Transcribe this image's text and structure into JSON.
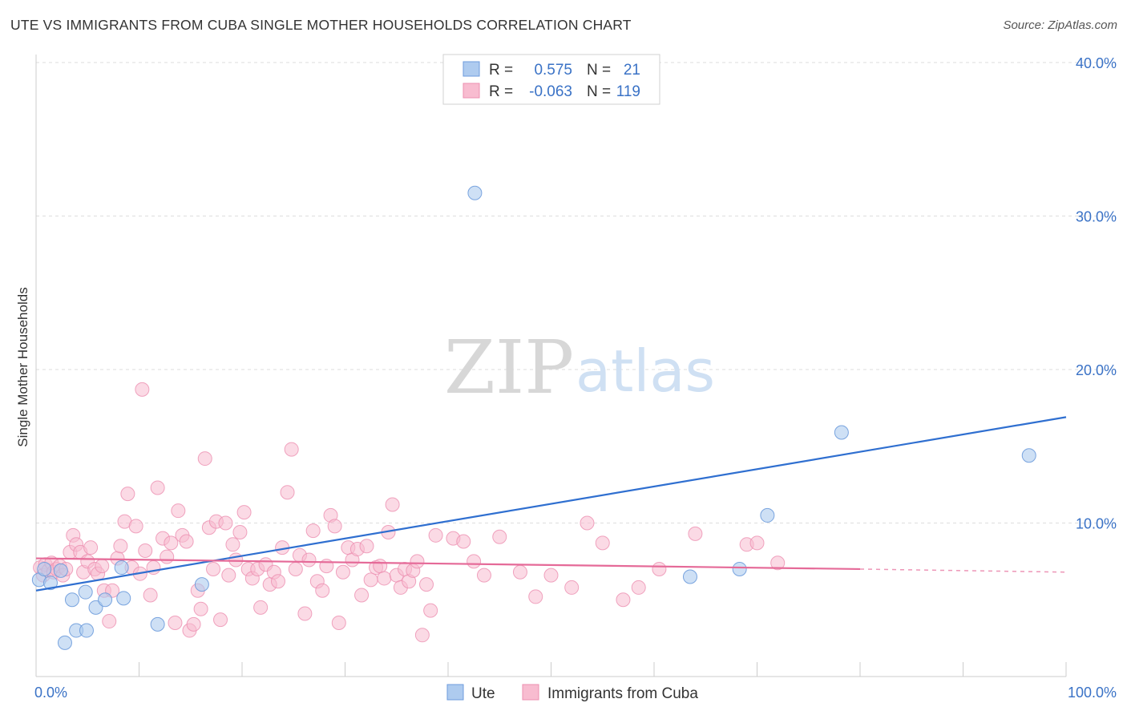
{
  "title": "UTE VS IMMIGRANTS FROM CUBA SINGLE MOTHER HOUSEHOLDS CORRELATION CHART",
  "source": "Source: ZipAtlas.com",
  "watermark": {
    "zip": "ZIP",
    "atlas": "atlas"
  },
  "colors": {
    "ute_fill": "#aecbef",
    "ute_stroke": "#6d9bdc",
    "ute_line": "#2f6fd0",
    "cuba_fill": "#f8bcd0",
    "cuba_stroke": "#ec8fb0",
    "cuba_line": "#e56a98",
    "tick_color": "#3a72c6",
    "grid": "#dddddd"
  },
  "stats": {
    "ute": {
      "r_label": "R =",
      "r_value": "0.575",
      "n_label": "N =",
      "n_value": "21"
    },
    "cuba": {
      "r_label": "R =",
      "r_value": "-0.063",
      "n_label": "N =",
      "n_value": "119"
    }
  },
  "legend": {
    "ute": "Ute",
    "cuba": "Immigrants from Cuba"
  },
  "chart_data": {
    "type": "scatter",
    "title": "UTE VS IMMIGRANTS FROM CUBA SINGLE MOTHER HOUSEHOLDS CORRELATION CHART",
    "xlabel": "",
    "ylabel": "Single Mother Households",
    "xlim": [
      0,
      100
    ],
    "ylim": [
      0,
      40
    ],
    "x_tick_labels": [
      "0.0%",
      "100.0%"
    ],
    "y_ticks": [
      10,
      20,
      30,
      40
    ],
    "y_tick_labels": [
      "10.0%",
      "20.0%",
      "30.0%",
      "40.0%"
    ],
    "grid": "horizontal dashed",
    "legend_position": "bottom-center",
    "series": [
      {
        "name": "Ute",
        "color": "#aecbef",
        "trend": {
          "x": [
            0,
            100
          ],
          "y": [
            5.6,
            16.9
          ]
        },
        "points": [
          [
            0.3,
            6.3
          ],
          [
            0.8,
            7.0
          ],
          [
            1.4,
            6.1
          ],
          [
            2.4,
            6.9
          ],
          [
            2.8,
            2.2
          ],
          [
            3.5,
            5.0
          ],
          [
            3.9,
            3.0
          ],
          [
            4.9,
            3.0
          ],
          [
            4.8,
            5.5
          ],
          [
            5.8,
            4.5
          ],
          [
            6.7,
            5.0
          ],
          [
            8.3,
            7.1
          ],
          [
            8.5,
            5.1
          ],
          [
            11.8,
            3.4
          ],
          [
            16.1,
            6.0
          ],
          [
            42.6,
            31.5
          ],
          [
            63.5,
            6.5
          ],
          [
            68.3,
            7.0
          ],
          [
            71.0,
            10.5
          ],
          [
            78.2,
            15.9
          ],
          [
            96.4,
            14.4
          ]
        ]
      },
      {
        "name": "Immigrants from Cuba",
        "color": "#f8bcd0",
        "trend": {
          "x": [
            0,
            80
          ],
          "y": [
            7.7,
            7.0
          ],
          "dashed_to": [
            100,
            6.8
          ]
        },
        "points": [
          [
            0.4,
            7.1
          ],
          [
            0.7,
            6.6
          ],
          [
            0.9,
            7.3
          ],
          [
            1.2,
            6.9
          ],
          [
            1.5,
            7.4
          ],
          [
            1.7,
            6.8
          ],
          [
            2.0,
            7.0
          ],
          [
            2.3,
            7.2
          ],
          [
            2.6,
            6.6
          ],
          [
            2.9,
            7.0
          ],
          [
            3.3,
            8.1
          ],
          [
            3.6,
            9.2
          ],
          [
            3.9,
            8.6
          ],
          [
            4.3,
            8.1
          ],
          [
            4.6,
            6.8
          ],
          [
            5.0,
            7.5
          ],
          [
            5.3,
            8.4
          ],
          [
            5.7,
            7.0
          ],
          [
            6.0,
            6.7
          ],
          [
            6.4,
            7.2
          ],
          [
            6.6,
            5.6
          ],
          [
            7.1,
            3.6
          ],
          [
            7.4,
            5.6
          ],
          [
            7.9,
            7.7
          ],
          [
            8.2,
            8.5
          ],
          [
            8.6,
            10.1
          ],
          [
            8.9,
            11.9
          ],
          [
            9.3,
            7.1
          ],
          [
            9.7,
            9.8
          ],
          [
            10.1,
            6.7
          ],
          [
            10.3,
            18.7
          ],
          [
            10.6,
            8.2
          ],
          [
            11.1,
            5.3
          ],
          [
            11.4,
            7.1
          ],
          [
            11.8,
            12.3
          ],
          [
            12.3,
            9.0
          ],
          [
            12.7,
            7.8
          ],
          [
            13.1,
            8.7
          ],
          [
            13.5,
            3.5
          ],
          [
            13.8,
            10.8
          ],
          [
            14.2,
            9.2
          ],
          [
            14.6,
            8.8
          ],
          [
            14.9,
            3.0
          ],
          [
            15.3,
            3.4
          ],
          [
            15.7,
            5.6
          ],
          [
            16.0,
            4.4
          ],
          [
            16.4,
            14.2
          ],
          [
            16.8,
            9.7
          ],
          [
            17.2,
            7.0
          ],
          [
            17.5,
            10.1
          ],
          [
            17.9,
            3.7
          ],
          [
            18.4,
            10.0
          ],
          [
            18.7,
            6.6
          ],
          [
            19.1,
            8.6
          ],
          [
            19.4,
            7.6
          ],
          [
            19.8,
            9.4
          ],
          [
            20.2,
            10.7
          ],
          [
            20.6,
            7.0
          ],
          [
            21.0,
            6.4
          ],
          [
            21.5,
            7.0
          ],
          [
            21.8,
            4.5
          ],
          [
            22.3,
            7.3
          ],
          [
            22.7,
            6.0
          ],
          [
            23.1,
            6.8
          ],
          [
            23.5,
            6.2
          ],
          [
            23.9,
            8.4
          ],
          [
            24.4,
            12.0
          ],
          [
            24.8,
            14.8
          ],
          [
            25.2,
            7.0
          ],
          [
            25.6,
            7.9
          ],
          [
            26.1,
            4.1
          ],
          [
            26.5,
            7.6
          ],
          [
            26.9,
            9.5
          ],
          [
            27.3,
            6.2
          ],
          [
            27.8,
            5.6
          ],
          [
            28.2,
            7.2
          ],
          [
            28.6,
            10.5
          ],
          [
            29.0,
            9.8
          ],
          [
            29.4,
            3.5
          ],
          [
            29.8,
            6.8
          ],
          [
            30.3,
            8.4
          ],
          [
            30.7,
            7.6
          ],
          [
            31.2,
            8.3
          ],
          [
            31.6,
            5.3
          ],
          [
            32.1,
            8.5
          ],
          [
            32.5,
            6.3
          ],
          [
            33.0,
            7.1
          ],
          [
            33.4,
            7.2
          ],
          [
            33.8,
            6.4
          ],
          [
            34.2,
            9.4
          ],
          [
            34.6,
            11.2
          ],
          [
            35.0,
            6.6
          ],
          [
            35.4,
            5.8
          ],
          [
            35.8,
            7.0
          ],
          [
            36.2,
            6.2
          ],
          [
            36.6,
            6.9
          ],
          [
            37.0,
            7.5
          ],
          [
            37.5,
            2.7
          ],
          [
            37.9,
            6.0
          ],
          [
            38.3,
            4.3
          ],
          [
            38.8,
            9.2
          ],
          [
            40.5,
            9.0
          ],
          [
            41.5,
            8.8
          ],
          [
            42.5,
            7.5
          ],
          [
            43.5,
            6.6
          ],
          [
            45.0,
            9.1
          ],
          [
            47.0,
            6.8
          ],
          [
            48.5,
            5.2
          ],
          [
            50.0,
            6.6
          ],
          [
            52.0,
            5.8
          ],
          [
            53.5,
            10.0
          ],
          [
            55.0,
            8.7
          ],
          [
            57.0,
            5.0
          ],
          [
            58.5,
            5.8
          ],
          [
            60.5,
            7.0
          ],
          [
            64.0,
            9.3
          ],
          [
            69.0,
            8.6
          ],
          [
            70.0,
            8.7
          ],
          [
            72.0,
            7.4
          ]
        ]
      }
    ]
  }
}
